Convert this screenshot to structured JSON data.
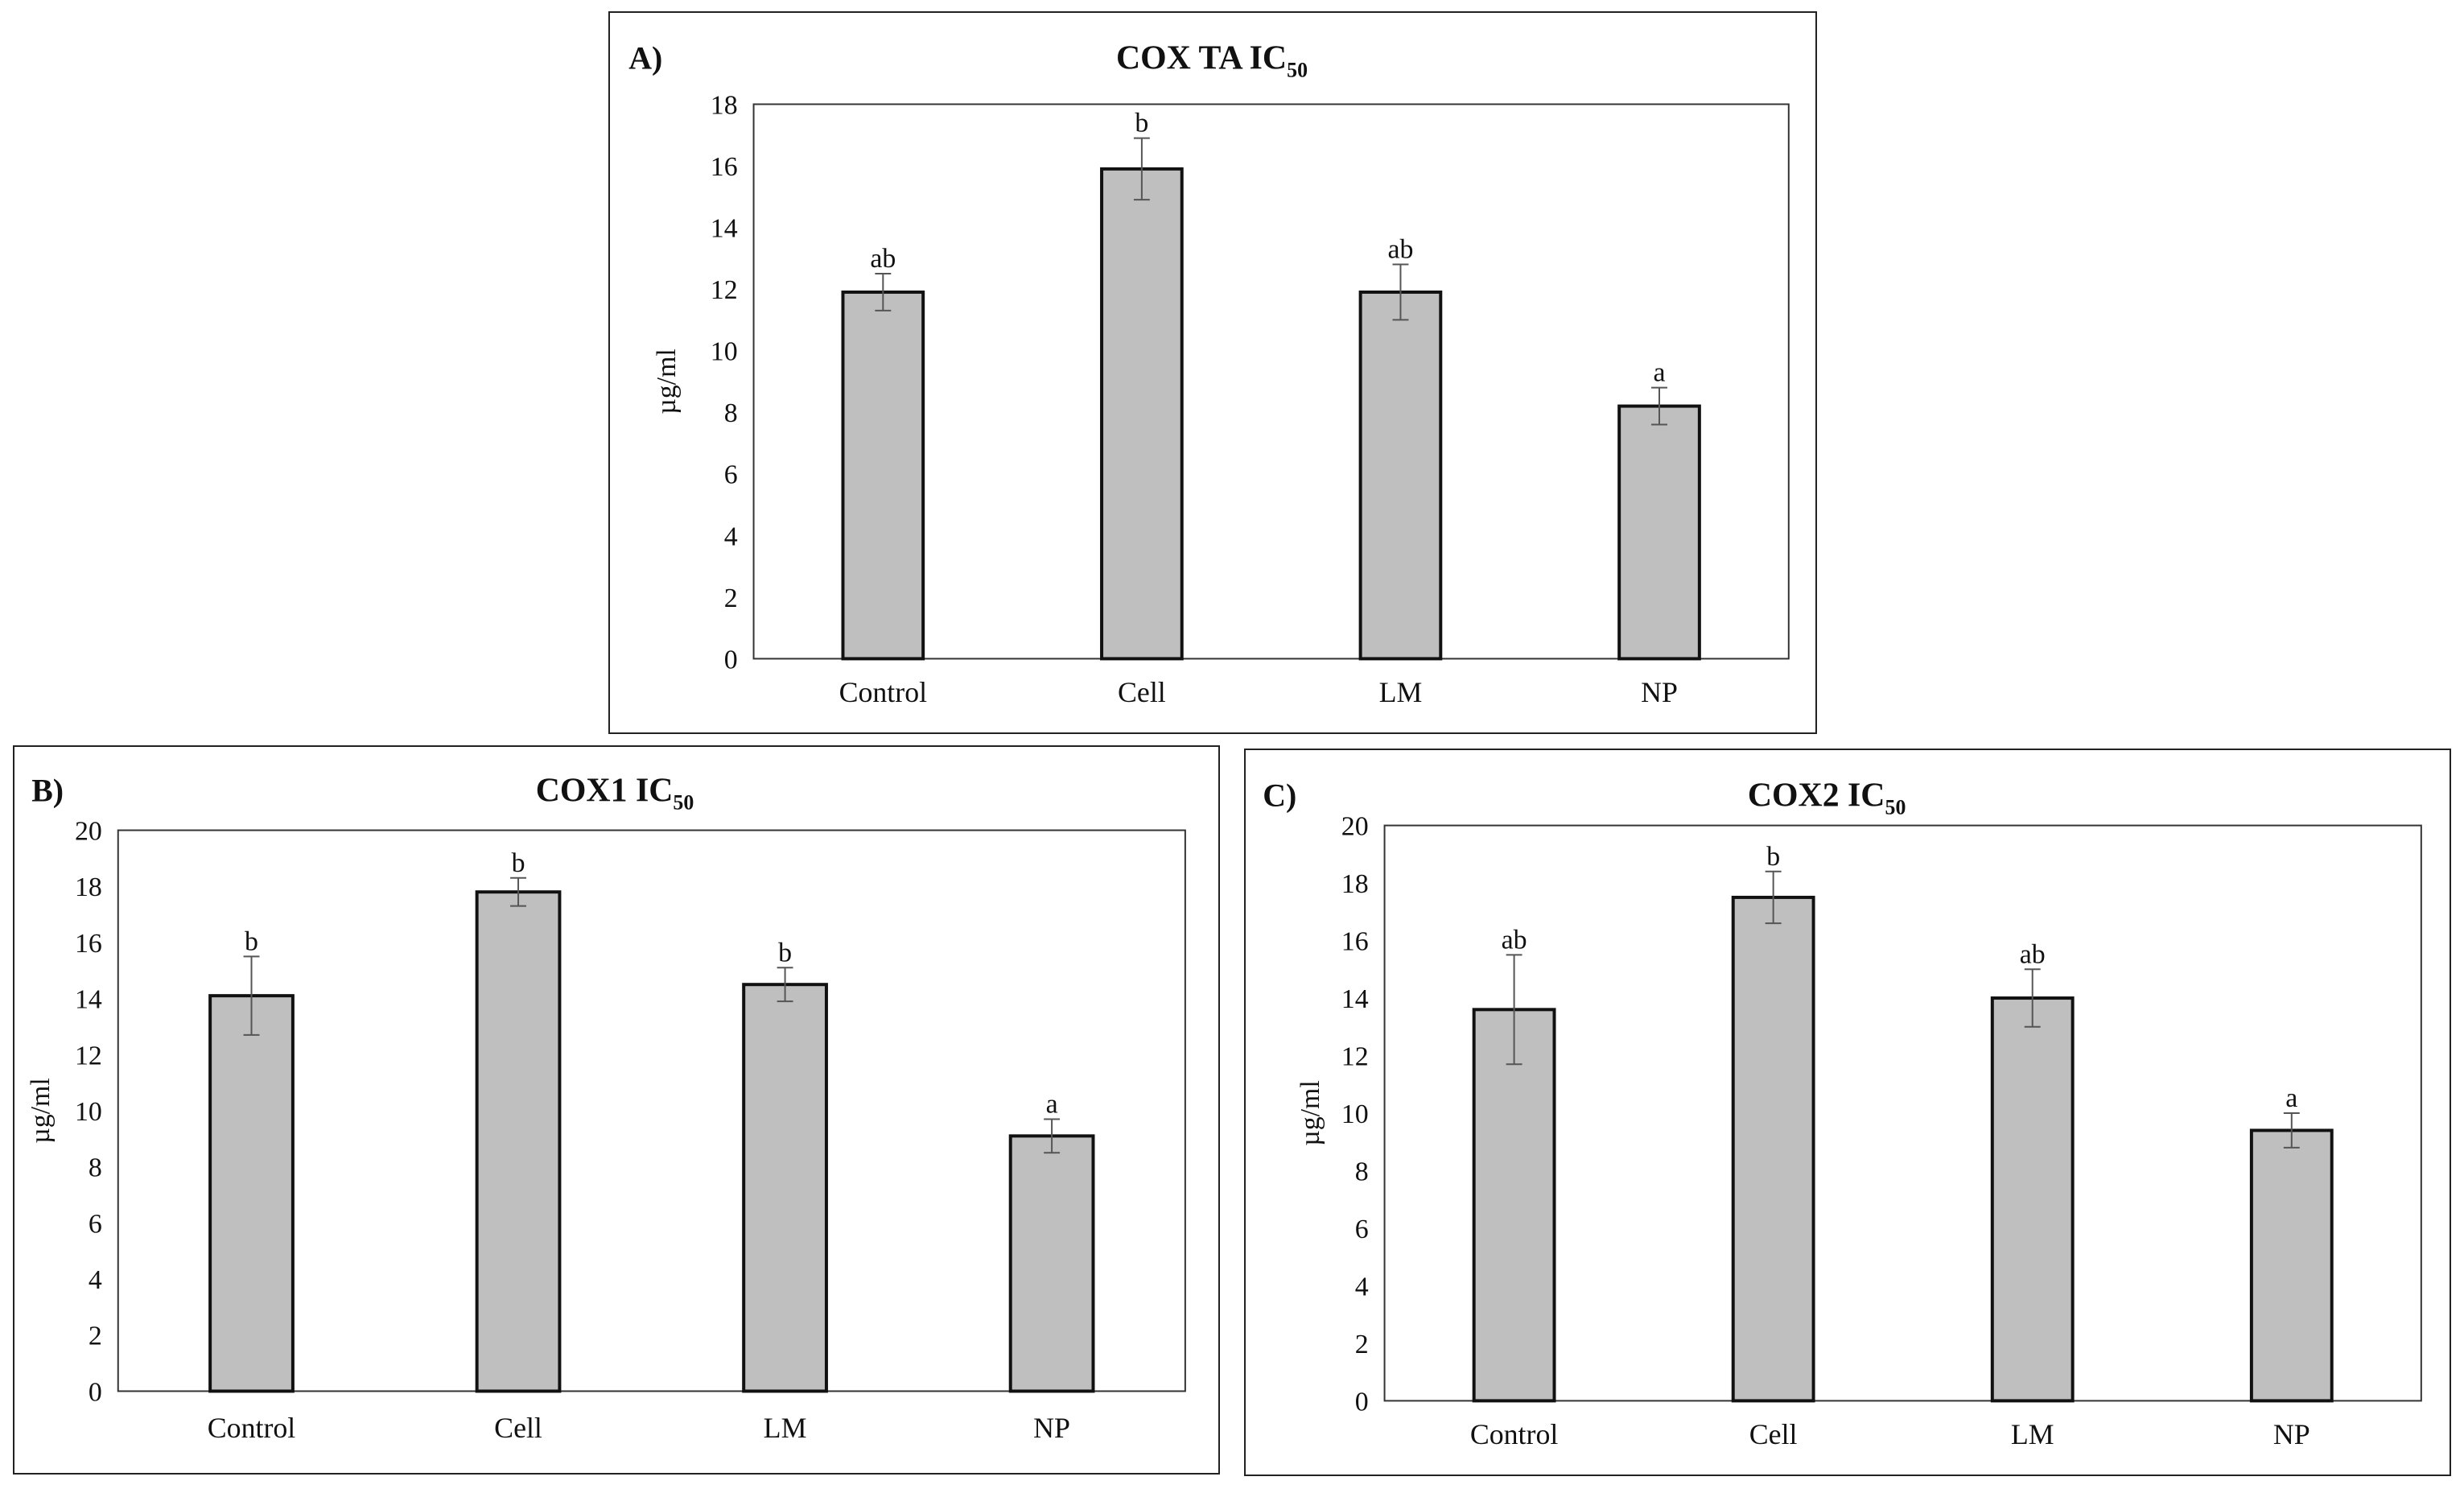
{
  "colors": {
    "bar_fill": "#bfbfbf",
    "bar_stroke": "#111111",
    "axis": "#333333",
    "error_bar": "#555555"
  },
  "chart_data": [
    {
      "type": "bar",
      "panel_label": "A)",
      "title": "COX TA IC",
      "title_subscript": "50",
      "xlabel": "",
      "ylabel": "µg/ml",
      "categories": [
        "Control",
        "Cell",
        "LM",
        "NP"
      ],
      "values": [
        11.9,
        15.9,
        11.9,
        8.2
      ],
      "errors": [
        0.6,
        1.0,
        0.9,
        0.6
      ],
      "significance": [
        "ab",
        "b",
        "ab",
        "a"
      ],
      "ylim": [
        0,
        18
      ],
      "yticks": [
        0,
        2,
        4,
        6,
        8,
        10,
        12,
        14,
        16,
        18
      ],
      "grid": false
    },
    {
      "type": "bar",
      "panel_label": "B)",
      "title": "COX1 IC",
      "title_subscript": "50",
      "xlabel": "",
      "ylabel": "µg/ml",
      "categories": [
        "Control",
        "Cell",
        "LM",
        "NP"
      ],
      "values": [
        14.1,
        17.8,
        14.5,
        9.1
      ],
      "errors": [
        1.4,
        0.5,
        0.6,
        0.6
      ],
      "significance": [
        "b",
        "b",
        "b",
        "a"
      ],
      "ylim": [
        0,
        20
      ],
      "yticks": [
        0,
        2,
        4,
        6,
        8,
        10,
        12,
        14,
        16,
        18,
        20
      ],
      "grid": false
    },
    {
      "type": "bar",
      "panel_label": "C)",
      "title": "COX2 IC",
      "title_subscript": "50",
      "xlabel": "",
      "ylabel": "µg/ml",
      "categories": [
        "Control",
        "Cell",
        "LM",
        "NP"
      ],
      "values": [
        13.6,
        17.5,
        14.0,
        9.4
      ],
      "errors": [
        1.9,
        0.9,
        1.0,
        0.6
      ],
      "significance": [
        "ab",
        "b",
        "ab",
        "a"
      ],
      "ylim": [
        0,
        20
      ],
      "yticks": [
        0,
        2,
        4,
        6,
        8,
        10,
        12,
        14,
        16,
        18,
        20
      ],
      "grid": false
    }
  ]
}
